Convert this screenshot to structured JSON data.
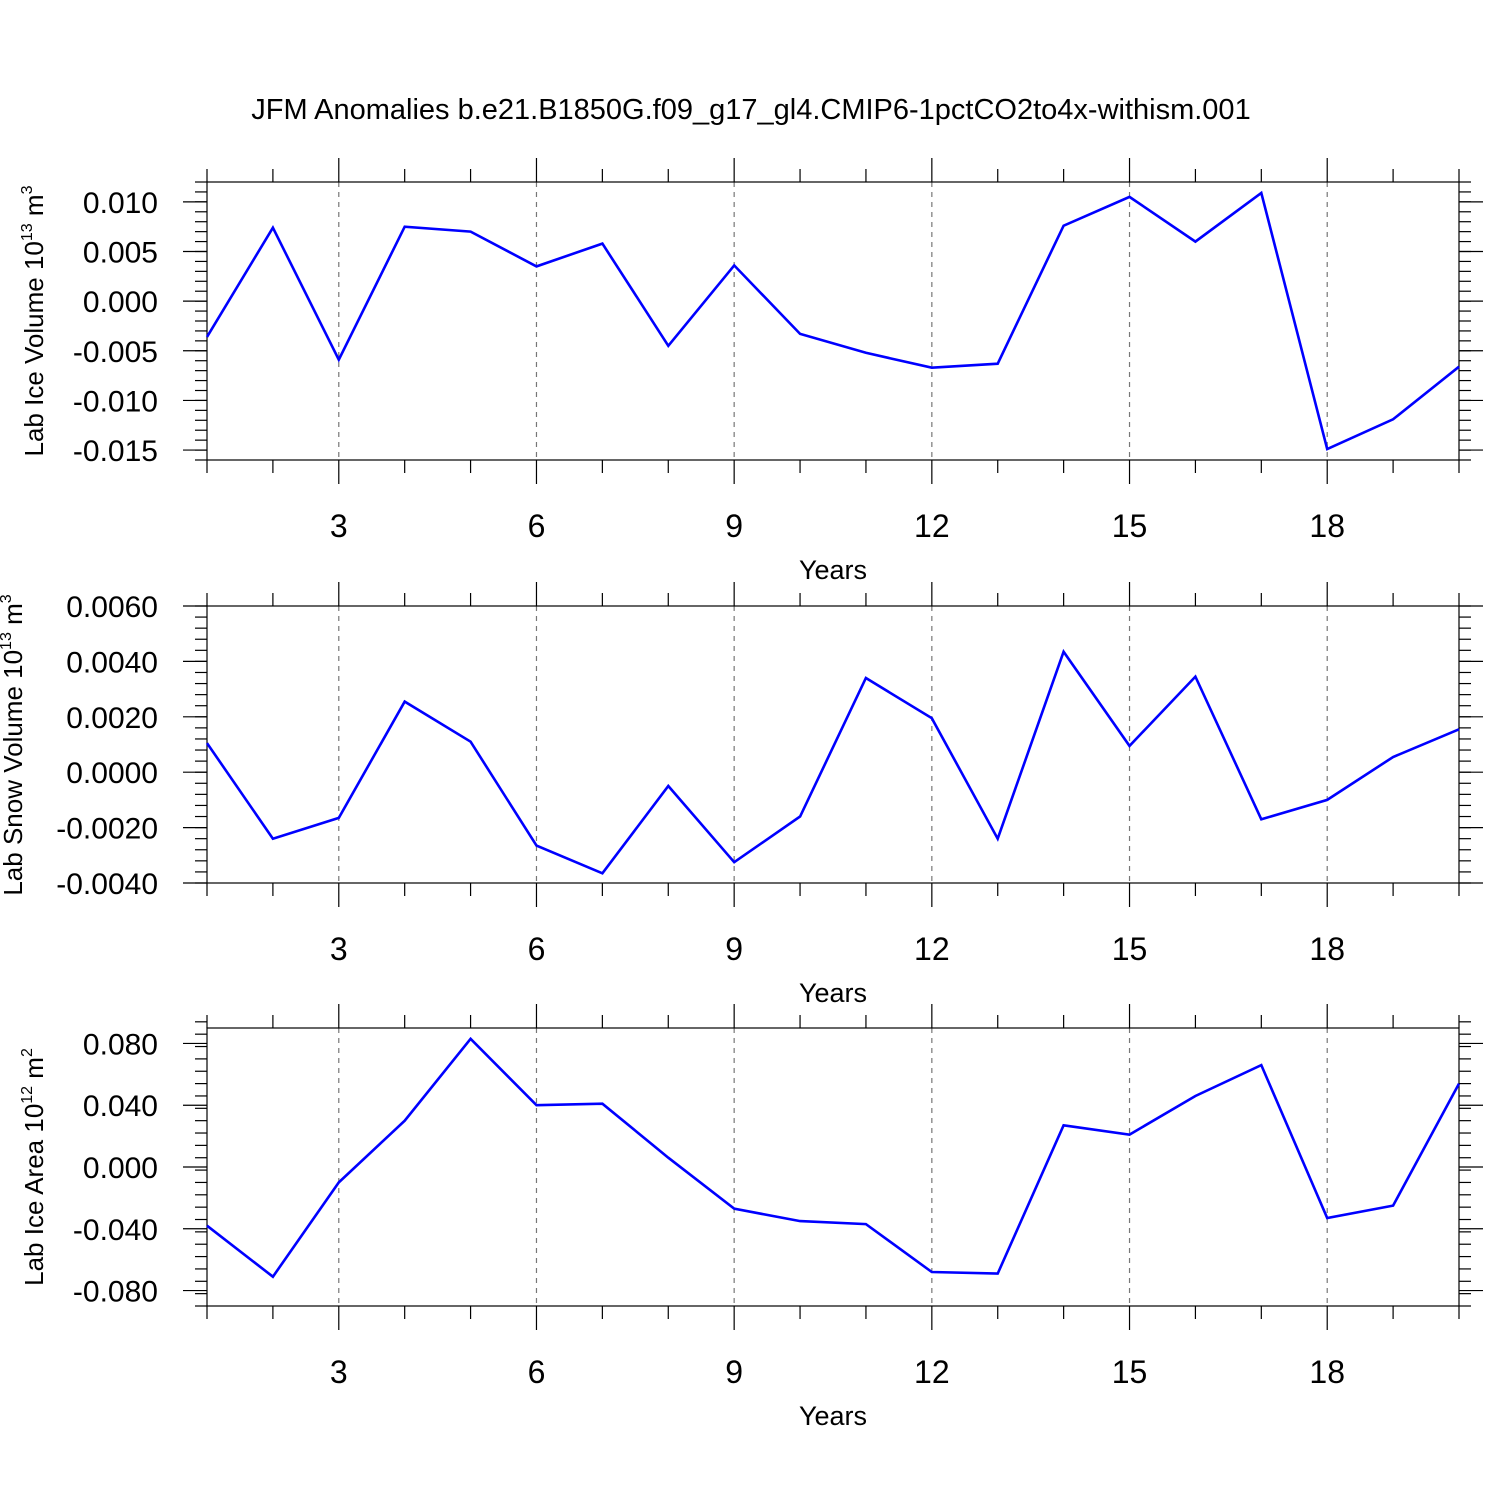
{
  "figure": {
    "title": "JFM Anomalies b.e21.B1850G.f09_g17_gl4.CMIP6-1pctCO2to4x-withism.001"
  },
  "chart_data": [
    {
      "type": "line",
      "xlabel": "Years",
      "ylabel": "Lab Ice Volume 10",
      "ylabel_exp": "13",
      "ylabel_unit": " m",
      "ylabel_unit_exp": "3",
      "xlim": [
        1,
        20
      ],
      "ylim": [
        -0.016,
        0.012
      ],
      "xticks": [
        "3",
        "6",
        "9",
        "12",
        "15",
        "18"
      ],
      "yticks": [
        "0.010",
        "0.005",
        "0.000",
        "-0.005",
        "-0.010",
        "-0.015"
      ],
      "ytick_values": [
        0.01,
        0.005,
        0.0,
        -0.005,
        -0.01,
        -0.015
      ],
      "series": [
        {
          "name": "Lab Ice Volume",
          "color": "#0000ff",
          "x": [
            1,
            2,
            3,
            4,
            5,
            6,
            7,
            8,
            9,
            10,
            11,
            12,
            13,
            14,
            15,
            16,
            17,
            18,
            19,
            20
          ],
          "values": [
            -0.0036,
            0.0074,
            -0.0059,
            0.0075,
            0.007,
            0.0035,
            0.0058,
            -0.0045,
            0.0036,
            -0.0033,
            -0.0052,
            -0.0067,
            -0.0063,
            0.0076,
            0.0105,
            0.006,
            0.0109,
            -0.0149,
            -0.0119,
            -0.0066
          ]
        }
      ]
    },
    {
      "type": "line",
      "xlabel": "Years",
      "ylabel": "Lab Snow Volume 10",
      "ylabel_exp": "13",
      "ylabel_unit": " m",
      "ylabel_unit_exp": "3",
      "xlim": [
        1,
        20
      ],
      "ylim": [
        -0.004,
        0.006
      ],
      "xticks": [
        "3",
        "6",
        "9",
        "12",
        "15",
        "18"
      ],
      "yticks": [
        "0.0060",
        "0.0040",
        "0.0020",
        "0.0000",
        "-0.0020",
        "-0.0040"
      ],
      "ytick_values": [
        0.006,
        0.004,
        0.002,
        0.0,
        -0.002,
        -0.004
      ],
      "series": [
        {
          "name": "Lab Snow Volume",
          "color": "#0000ff",
          "x": [
            1,
            2,
            3,
            4,
            5,
            6,
            7,
            8,
            9,
            10,
            11,
            12,
            13,
            14,
            15,
            16,
            17,
            18,
            19,
            20
          ],
          "values": [
            0.00105,
            -0.0024,
            -0.00165,
            0.00255,
            0.0011,
            -0.00265,
            -0.00365,
            -0.0005,
            -0.00325,
            -0.0016,
            0.0034,
            0.00195,
            -0.0024,
            0.00435,
            0.00095,
            0.00345,
            -0.0017,
            -0.001,
            0.00055,
            0.00155
          ]
        }
      ]
    },
    {
      "type": "line",
      "xlabel": "Years",
      "ylabel": "Lab Ice Area 10",
      "ylabel_exp": "12",
      "ylabel_unit": " m",
      "ylabel_unit_exp": "2",
      "xlim": [
        1,
        20
      ],
      "ylim": [
        -0.09,
        0.09
      ],
      "xticks": [
        "3",
        "6",
        "9",
        "12",
        "15",
        "18"
      ],
      "yticks": [
        "0.080",
        "0.040",
        "0.000",
        "-0.040",
        "-0.080"
      ],
      "ytick_values": [
        0.08,
        0.04,
        0.0,
        -0.04,
        -0.08
      ],
      "series": [
        {
          "name": "Lab Ice Area",
          "color": "#0000ff",
          "x": [
            1,
            2,
            3,
            4,
            5,
            6,
            7,
            8,
            9,
            10,
            11,
            12,
            13,
            14,
            15,
            16,
            17,
            18,
            19,
            20
          ],
          "values": [
            -0.038,
            -0.071,
            -0.01,
            0.03,
            0.083,
            0.04,
            0.041,
            0.006,
            -0.027,
            -0.035,
            -0.037,
            -0.068,
            -0.069,
            0.027,
            0.021,
            0.046,
            0.066,
            -0.033,
            -0.025,
            0.054
          ]
        }
      ]
    }
  ]
}
